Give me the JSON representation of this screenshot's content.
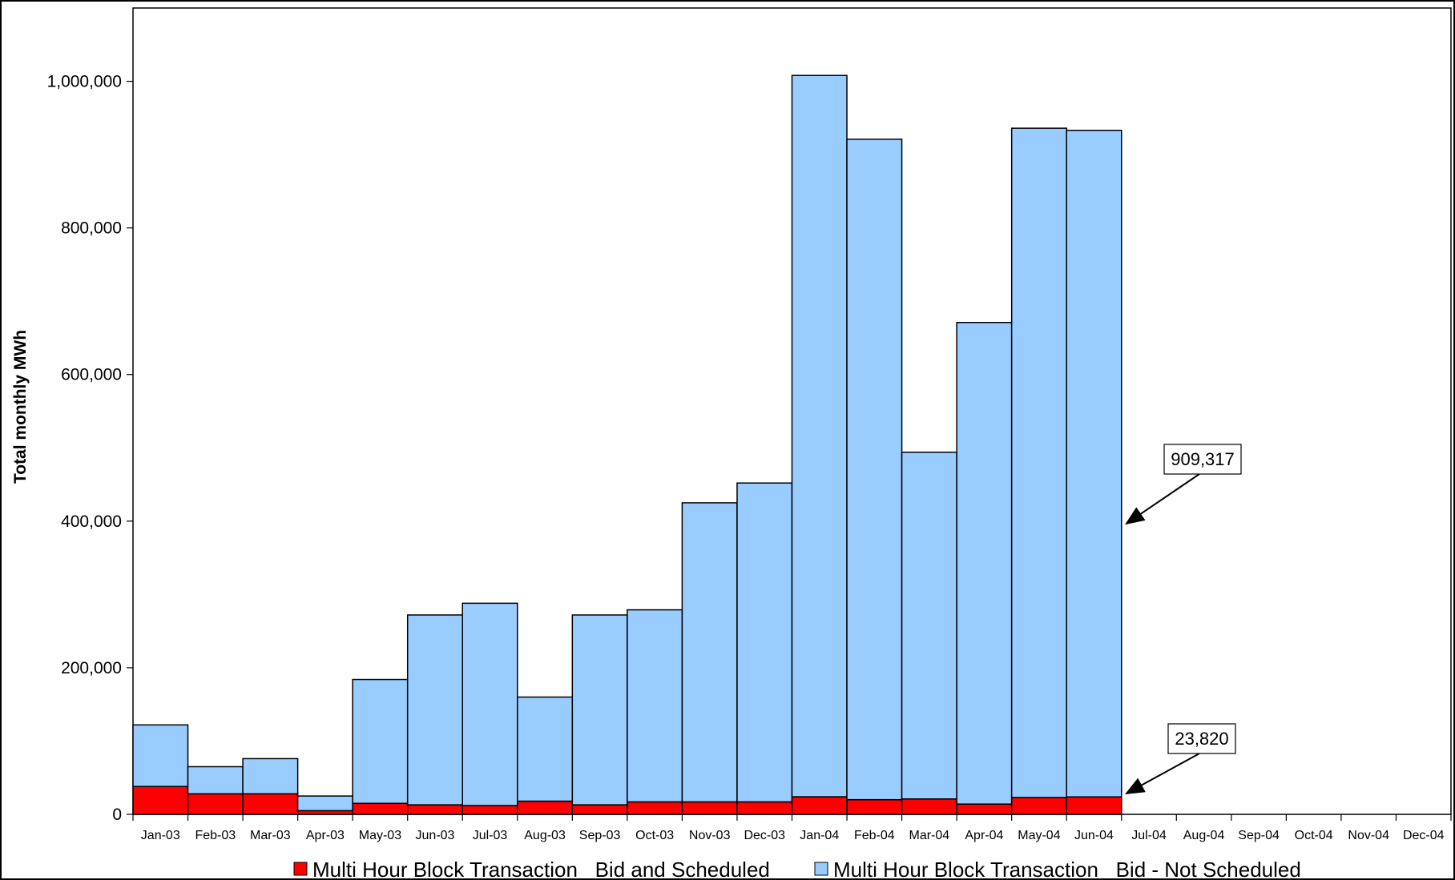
{
  "chart_data": {
    "type": "bar",
    "stacked": true,
    "categories": [
      "Jan-03",
      "Feb-03",
      "Mar-03",
      "Apr-03",
      "May-03",
      "Jun-03",
      "Jul-03",
      "Aug-03",
      "Sep-03",
      "Oct-03",
      "Nov-03",
      "Dec-03",
      "Jan-04",
      "Feb-04",
      "Mar-04",
      "Apr-04",
      "May-04",
      "Jun-04",
      "Jul-04",
      "Aug-04",
      "Sep-04",
      "Oct-04",
      "Nov-04",
      "Dec-04"
    ],
    "series": [
      {
        "name": "Multi Hour Block Transaction   Bid and Scheduled",
        "color": "#ff0000",
        "values": [
          38000,
          28000,
          28000,
          5000,
          15000,
          13000,
          12000,
          18000,
          13000,
          17000,
          17000,
          17000,
          24000,
          20000,
          21000,
          14000,
          23000,
          23820,
          null,
          null,
          null,
          null,
          null,
          null
        ]
      },
      {
        "name": "Multi Hour Block Transaction   Bid - Not Scheduled",
        "color": "#99ccff",
        "values": [
          84000,
          37000,
          48000,
          20000,
          169000,
          259000,
          276000,
          142000,
          259000,
          262000,
          408000,
          435000,
          984000,
          901000,
          473000,
          657000,
          913000,
          909317,
          null,
          null,
          null,
          null,
          null,
          null
        ]
      }
    ],
    "ylabel": "Total monthly MWh",
    "xlabel": "",
    "ylim": [
      0,
      1100000
    ],
    "yticks": [
      0,
      200000,
      400000,
      600000,
      800000,
      1000000
    ],
    "ytick_labels": [
      "0",
      "200,000",
      "400,000",
      "600,000",
      "800,000",
      "1,000,000"
    ],
    "grid": false,
    "legend_position": "bottom",
    "annotations": [
      {
        "text": "909,317",
        "target_category": "Jun-04",
        "target_series": 1
      },
      {
        "text": "23,820",
        "target_category": "Jun-04",
        "target_series": 0
      }
    ]
  }
}
